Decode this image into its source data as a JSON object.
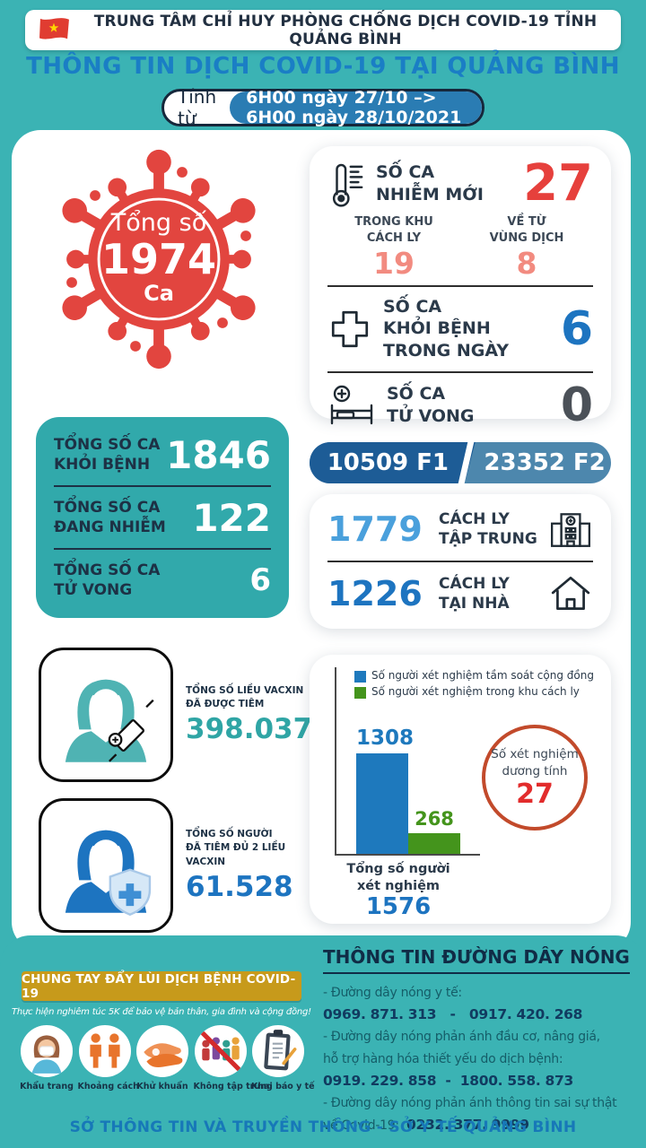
{
  "header": {
    "org": "TRUNG TÂM CHỈ HUY PHÒNG CHỐNG DỊCH COVID-19 TỈNH QUẢNG BÌNH",
    "title": "THÔNG TIN DỊCH COVID-19 TẠI QUẢNG BÌNH",
    "time_label": "Tính từ",
    "time_range": "6H00 ngày 27/10 –> 6H00 ngày 28/10/2021"
  },
  "total_cases": {
    "label": "Tổng số",
    "value": "1974",
    "unit": "Ca"
  },
  "daily": {
    "new_cases": {
      "label": "SỐ CA\nNHIỄM MỚI",
      "value": "27"
    },
    "in_quarantine": {
      "label": "TRONG KHU\nCÁCH LY",
      "value": "19"
    },
    "from_epidemic_zone": {
      "label": "VỀ TỪ\nVÙNG DỊCH",
      "value": "8"
    },
    "recovered_today": {
      "label": "SỐ CA\nKHỎI BỆNH\nTRONG NGÀY",
      "value": "6"
    },
    "deaths_today": {
      "label": "SỐ CA\nTỬ VONG",
      "value": "0"
    }
  },
  "totals": {
    "recovered": {
      "label": "TỔNG SỐ CA\nKHỎI BỆNH",
      "value": "1846"
    },
    "active": {
      "label": "TỔNG SỐ CA\nĐANG NHIỄM",
      "value": "122"
    },
    "deaths": {
      "label": "TỔNG SỐ CA\nTỬ VONG",
      "value": "6"
    }
  },
  "contacts": {
    "f1_value": "10509",
    "f1_tag": "F1",
    "f2_value": "23352",
    "f2_tag": "F2"
  },
  "quarantine": {
    "centralized": {
      "value": "1779",
      "label": "CÁCH LY\nTẬP TRUNG"
    },
    "home": {
      "value": "1226",
      "label": "CÁCH LY\nTẠI NHÀ"
    }
  },
  "vaccine": {
    "doses": {
      "label": "TỔNG SỐ LIỀU VACXIN\nĐÃ ĐƯỢC TIÊM",
      "value": "398.037"
    },
    "fully_vaccinated": {
      "label": "TỔNG SỐ NGƯỜI\nĐÃ TIÊM ĐỦ 2 LIỀU VACXIN",
      "value": "61.528"
    }
  },
  "chart_data": {
    "type": "bar",
    "categories": [
      "Tổng số người xét nghiệm"
    ],
    "series": [
      {
        "name": "Số người xét nghiệm tầm soát cộng đồng",
        "values": [
          1308
        ],
        "color": "#1E79BD"
      },
      {
        "name": "Số người xét nghiệm trong khu cách ly",
        "values": [
          268
        ],
        "color": "#44941C"
      }
    ],
    "ylim": [
      0,
      1400
    ],
    "grid": false,
    "legend_position": "top-left",
    "total": {
      "label": "Tổng số người\nxét nghiệm",
      "value": "1576"
    },
    "positive": {
      "label": "Số xét nghiệm\ndương tính",
      "value": "27"
    }
  },
  "campaign": {
    "banner": "CHUNG TAY ĐẨY LÙI DỊCH BỆNH COVID-19",
    "slogan": "Thực hiện nghiêm túc 5K để bảo vệ bản thân, gia đình và cộng đồng!",
    "items": [
      {
        "label": "Khẩu trang"
      },
      {
        "label": "Khoảng cách"
      },
      {
        "label": "Khử khuẩn"
      },
      {
        "label": "Không tập trung"
      },
      {
        "label": "Khai báo y tế"
      }
    ]
  },
  "hotline": {
    "title": "THÔNG TIN ĐƯỜNG DÂY NÓNG",
    "lines": [
      {
        "normal": "- Đường dây nóng y tế:",
        "strong": ""
      },
      {
        "normal": "",
        "strong": "0969. 871. 313   -   0917. 420. 268"
      },
      {
        "normal": "- Đường dây nóng phản ánh đầu cơ, nâng giá,",
        "strong": ""
      },
      {
        "normal": "hỗ trợ hàng hóa thiết yếu do dịch bệnh:",
        "strong": ""
      },
      {
        "normal": "",
        "strong": "0919. 229. 858  -  1800. 558. 873"
      },
      {
        "normal": "- Đường dây nóng phản ánh thông tin sai sự thật",
        "strong": ""
      },
      {
        "normal": "về Covid-19:  ",
        "strong": "0232. 377. 9999"
      }
    ]
  },
  "footer": "SỞ THÔNG TIN VÀ TRUYỀN THÔNG - SỞ Y TẾ QUẢNG BÌNH",
  "colors": {
    "background": "#3BB3B4",
    "teal_card": "#31A9AB",
    "virus_red": "#E2453F",
    "accent_red": "#E6403C",
    "salmon": "#F28B80",
    "blue": "#1D74C0",
    "light_blue": "#4AA0DC",
    "f1_blue": "#1D5C96",
    "f2_blue": "#4D87AD",
    "bar_blue": "#1E79BD",
    "bar_green": "#44941C",
    "gold": "#C79A1B",
    "navy": "#16273B",
    "title_blue": "#1A7EC5",
    "circle_orange": "#C24A2B"
  }
}
